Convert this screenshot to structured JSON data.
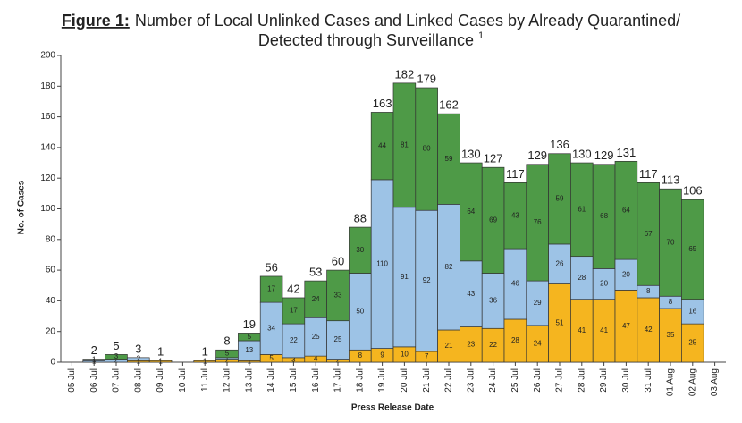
{
  "chart_data": {
    "type": "stacked_bar",
    "title_prefix": "Figure 1:",
    "title": "Number of Local Unlinked Cases and Linked Cases by Already Quarantined/",
    "title_line2": "Detected through Surveillance",
    "title_note": "1",
    "y_label": "No. of Cases",
    "x_label": "Press Release Date",
    "categories": [
      "05 Jul",
      "06 Jul",
      "07 Jul",
      "08 Jul",
      "09 Jul",
      "10 Jul",
      "11 Jul",
      "12 Jul",
      "13 Jul",
      "14 Jul",
      "15 Jul",
      "16 Jul",
      "17 Jul",
      "18 Jul",
      "19 Jul",
      "20 Jul",
      "21 Jul",
      "22 Jul",
      "23 Jul",
      "24 Jul",
      "25 Jul",
      "26 Jul",
      "27 Jul",
      "28 Jul",
      "29 Jul",
      "30 Jul",
      "31 Jul",
      "01 Aug",
      "02 Aug",
      "03 Aug"
    ],
    "series": [
      {
        "color": "#f5b51f",
        "values": [
          null,
          0,
          0,
          1,
          1,
          null,
          1,
          2,
          1,
          5,
          3,
          4,
          2,
          8,
          9,
          10,
          7,
          21,
          23,
          22,
          28,
          24,
          51,
          41,
          41,
          47,
          42,
          35,
          25,
          null
        ]
      },
      {
        "color": "#9dc3e6",
        "values": [
          null,
          1,
          2,
          2,
          0,
          null,
          0,
          1,
          13,
          34,
          22,
          25,
          25,
          50,
          110,
          91,
          92,
          82,
          43,
          36,
          46,
          29,
          26,
          28,
          20,
          20,
          8,
          8,
          16,
          null
        ]
      },
      {
        "color": "#4e9a47",
        "values": [
          null,
          1,
          3,
          0,
          0,
          null,
          0,
          5,
          5,
          17,
          17,
          24,
          33,
          30,
          44,
          81,
          80,
          59,
          64,
          69,
          43,
          76,
          59,
          61,
          68,
          64,
          67,
          70,
          65,
          null
        ]
      }
    ],
    "totals": [
      null,
      2,
      5,
      3,
      1,
      null,
      1,
      8,
      19,
      56,
      42,
      53,
      60,
      88,
      163,
      182,
      179,
      162,
      130,
      127,
      117,
      129,
      136,
      130,
      129,
      131,
      117,
      113,
      106,
      null
    ],
    "ylim": [
      0,
      200
    ],
    "yticks": [
      0,
      20,
      40,
      60,
      80,
      100,
      120,
      140,
      160,
      180,
      200
    ]
  }
}
